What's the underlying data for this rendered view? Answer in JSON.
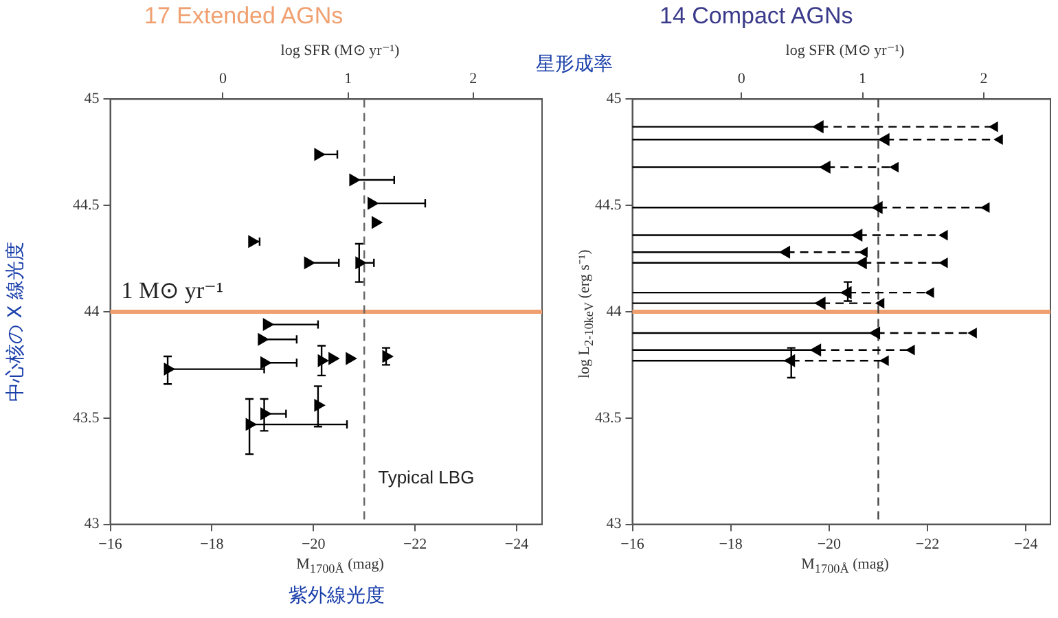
{
  "chart_data": [
    {
      "type": "scatter",
      "title": "17 Extended AGNs",
      "xlabel": "M$_{1700Å}$ (mag)",
      "x2label": "log SFR (M⊙ yr⁻¹)",
      "xlim": [
        -16,
        -24.5
      ],
      "xticks": [
        -16,
        -18,
        -20,
        -22,
        -24
      ],
      "x2lim": [
        -0.9,
        2.55
      ],
      "x2ticks": [
        0,
        1,
        2
      ],
      "ylim": [
        43,
        45
      ],
      "yticks": [
        43,
        43.5,
        44,
        44.5,
        45
      ],
      "grid": false,
      "marker": "triangle",
      "series": [
        {
          "color": "#000000",
          "x": [
            -20.09,
            -20.78,
            -21.14,
            -21.22,
            -18.79,
            -19.89,
            -20.9,
            -19.08,
            -18.98,
            -19.03,
            -17.13,
            -20.16,
            -20.37,
            -20.71,
            -21.43,
            -20.09,
            -19.03,
            -18.74
          ],
          "values": [
            44.74,
            44.62,
            44.51,
            44.42,
            44.33,
            44.23,
            44.23,
            43.94,
            43.87,
            43.76,
            43.73,
            43.77,
            43.78,
            43.78,
            43.79,
            43.56,
            43.52,
            43.47
          ],
          "xerrors": [
            [
              -20.47,
              -20.09
            ],
            [
              -21.59,
              -20.78
            ],
            [
              -22.2,
              -21.14
            ],
            null,
            [
              -18.94,
              -18.79
            ],
            [
              -20.5,
              -19.89
            ],
            [
              -21.19,
              -20.9
            ],
            [
              -20.09,
              -19.08
            ],
            [
              -19.67,
              -18.98
            ],
            [
              -19.67,
              -19.03
            ],
            [
              -19.03,
              -17.13
            ],
            null,
            null,
            null,
            null,
            null,
            [
              -19.46,
              -19.03
            ],
            [
              -20.66,
              -18.74
            ]
          ],
          "errors": [
            null,
            null,
            null,
            null,
            null,
            null,
            [
              44.14,
              44.32
            ],
            null,
            null,
            null,
            [
              43.66,
              43.79
            ],
            [
              43.7,
              43.84
            ],
            null,
            null,
            [
              43.75,
              43.83
            ],
            [
              43.46,
              43.65
            ],
            [
              43.44,
              43.59
            ],
            [
              43.33,
              43.59
            ]
          ]
        }
      ],
      "ref_lines": [
        {
          "axis": "y",
          "value": 44,
          "label": "1 M⊙ yr⁻¹",
          "color": "#f0a070"
        },
        {
          "axis": "x",
          "value": -21,
          "label": "Typical LBG",
          "color": "#666666",
          "line_style": "dashed"
        }
      ],
      "annotations": [
        "星形成率",
        "中心核の X 線光度",
        "紫外線光度"
      ]
    },
    {
      "type": "scatter",
      "title": "14 Compact AGNs",
      "xlabel": "M$_{1700Å}$ (mag)",
      "x2label": "log SFR (M⊙ yr⁻¹)",
      "ylabel": "log L$_{2-10keV}$ (erg s⁻¹)",
      "xlim": [
        -16,
        -24.5
      ],
      "xticks": [
        -16,
        -18,
        -20,
        -22,
        -24
      ],
      "x2lim": [
        -0.9,
        2.55
      ],
      "x2ticks": [
        0,
        1,
        2
      ],
      "ylim": [
        43,
        45
      ],
      "yticks": [
        43,
        43.5,
        44,
        44.5,
        45
      ],
      "grid": false,
      "marker": "triangle",
      "series": [
        {
          "color": "#000000",
          "line_style": "dashed",
          "x": [
            -19.81,
            -21.15,
            -19.95,
            -21.01,
            -20.6,
            -19.13,
            -20.69,
            -20.38,
            -19.85,
            -20.96,
            -19.76,
            -19.23
          ],
          "values": [
            44.87,
            44.81,
            44.68,
            44.49,
            44.36,
            44.28,
            44.23,
            44.09,
            44.04,
            43.9,
            43.82,
            43.77
          ],
          "xerrors": [
            [
              -23.37,
              -16
            ],
            [
              -23.47,
              -16
            ],
            [
              -21.35,
              -16
            ],
            [
              -23.2,
              -16
            ],
            [
              -22.35,
              -16
            ],
            [
              -20.72,
              -16
            ],
            [
              -22.35,
              -16
            ],
            [
              -22.07,
              -16
            ],
            [
              -21.06,
              -16
            ],
            [
              -22.94,
              -16
            ],
            [
              -21.68,
              -16
            ],
            [
              -21.15,
              -16
            ]
          ],
          "errors": [
            null,
            null,
            null,
            null,
            null,
            null,
            null,
            [
              44.05,
              44.14
            ],
            null,
            null,
            null,
            [
              43.69,
              43.83
            ]
          ]
        },
        {
          "color": "#000000",
          "x": [
            -23.37,
            -23.47,
            -21.35,
            -23.2,
            -22.35,
            -20.72,
            -22.35,
            -22.07,
            -21.06,
            -22.94,
            -21.68,
            -21.15
          ],
          "values": [
            44.87,
            44.81,
            44.68,
            44.49,
            44.36,
            44.28,
            44.23,
            44.09,
            44.04,
            43.9,
            43.82,
            43.77
          ]
        }
      ],
      "ref_lines": [
        {
          "axis": "y",
          "value": 44,
          "color": "#f0a070"
        },
        {
          "axis": "x",
          "value": -21,
          "color": "#444444",
          "line_style": "dashed"
        }
      ]
    }
  ]
}
